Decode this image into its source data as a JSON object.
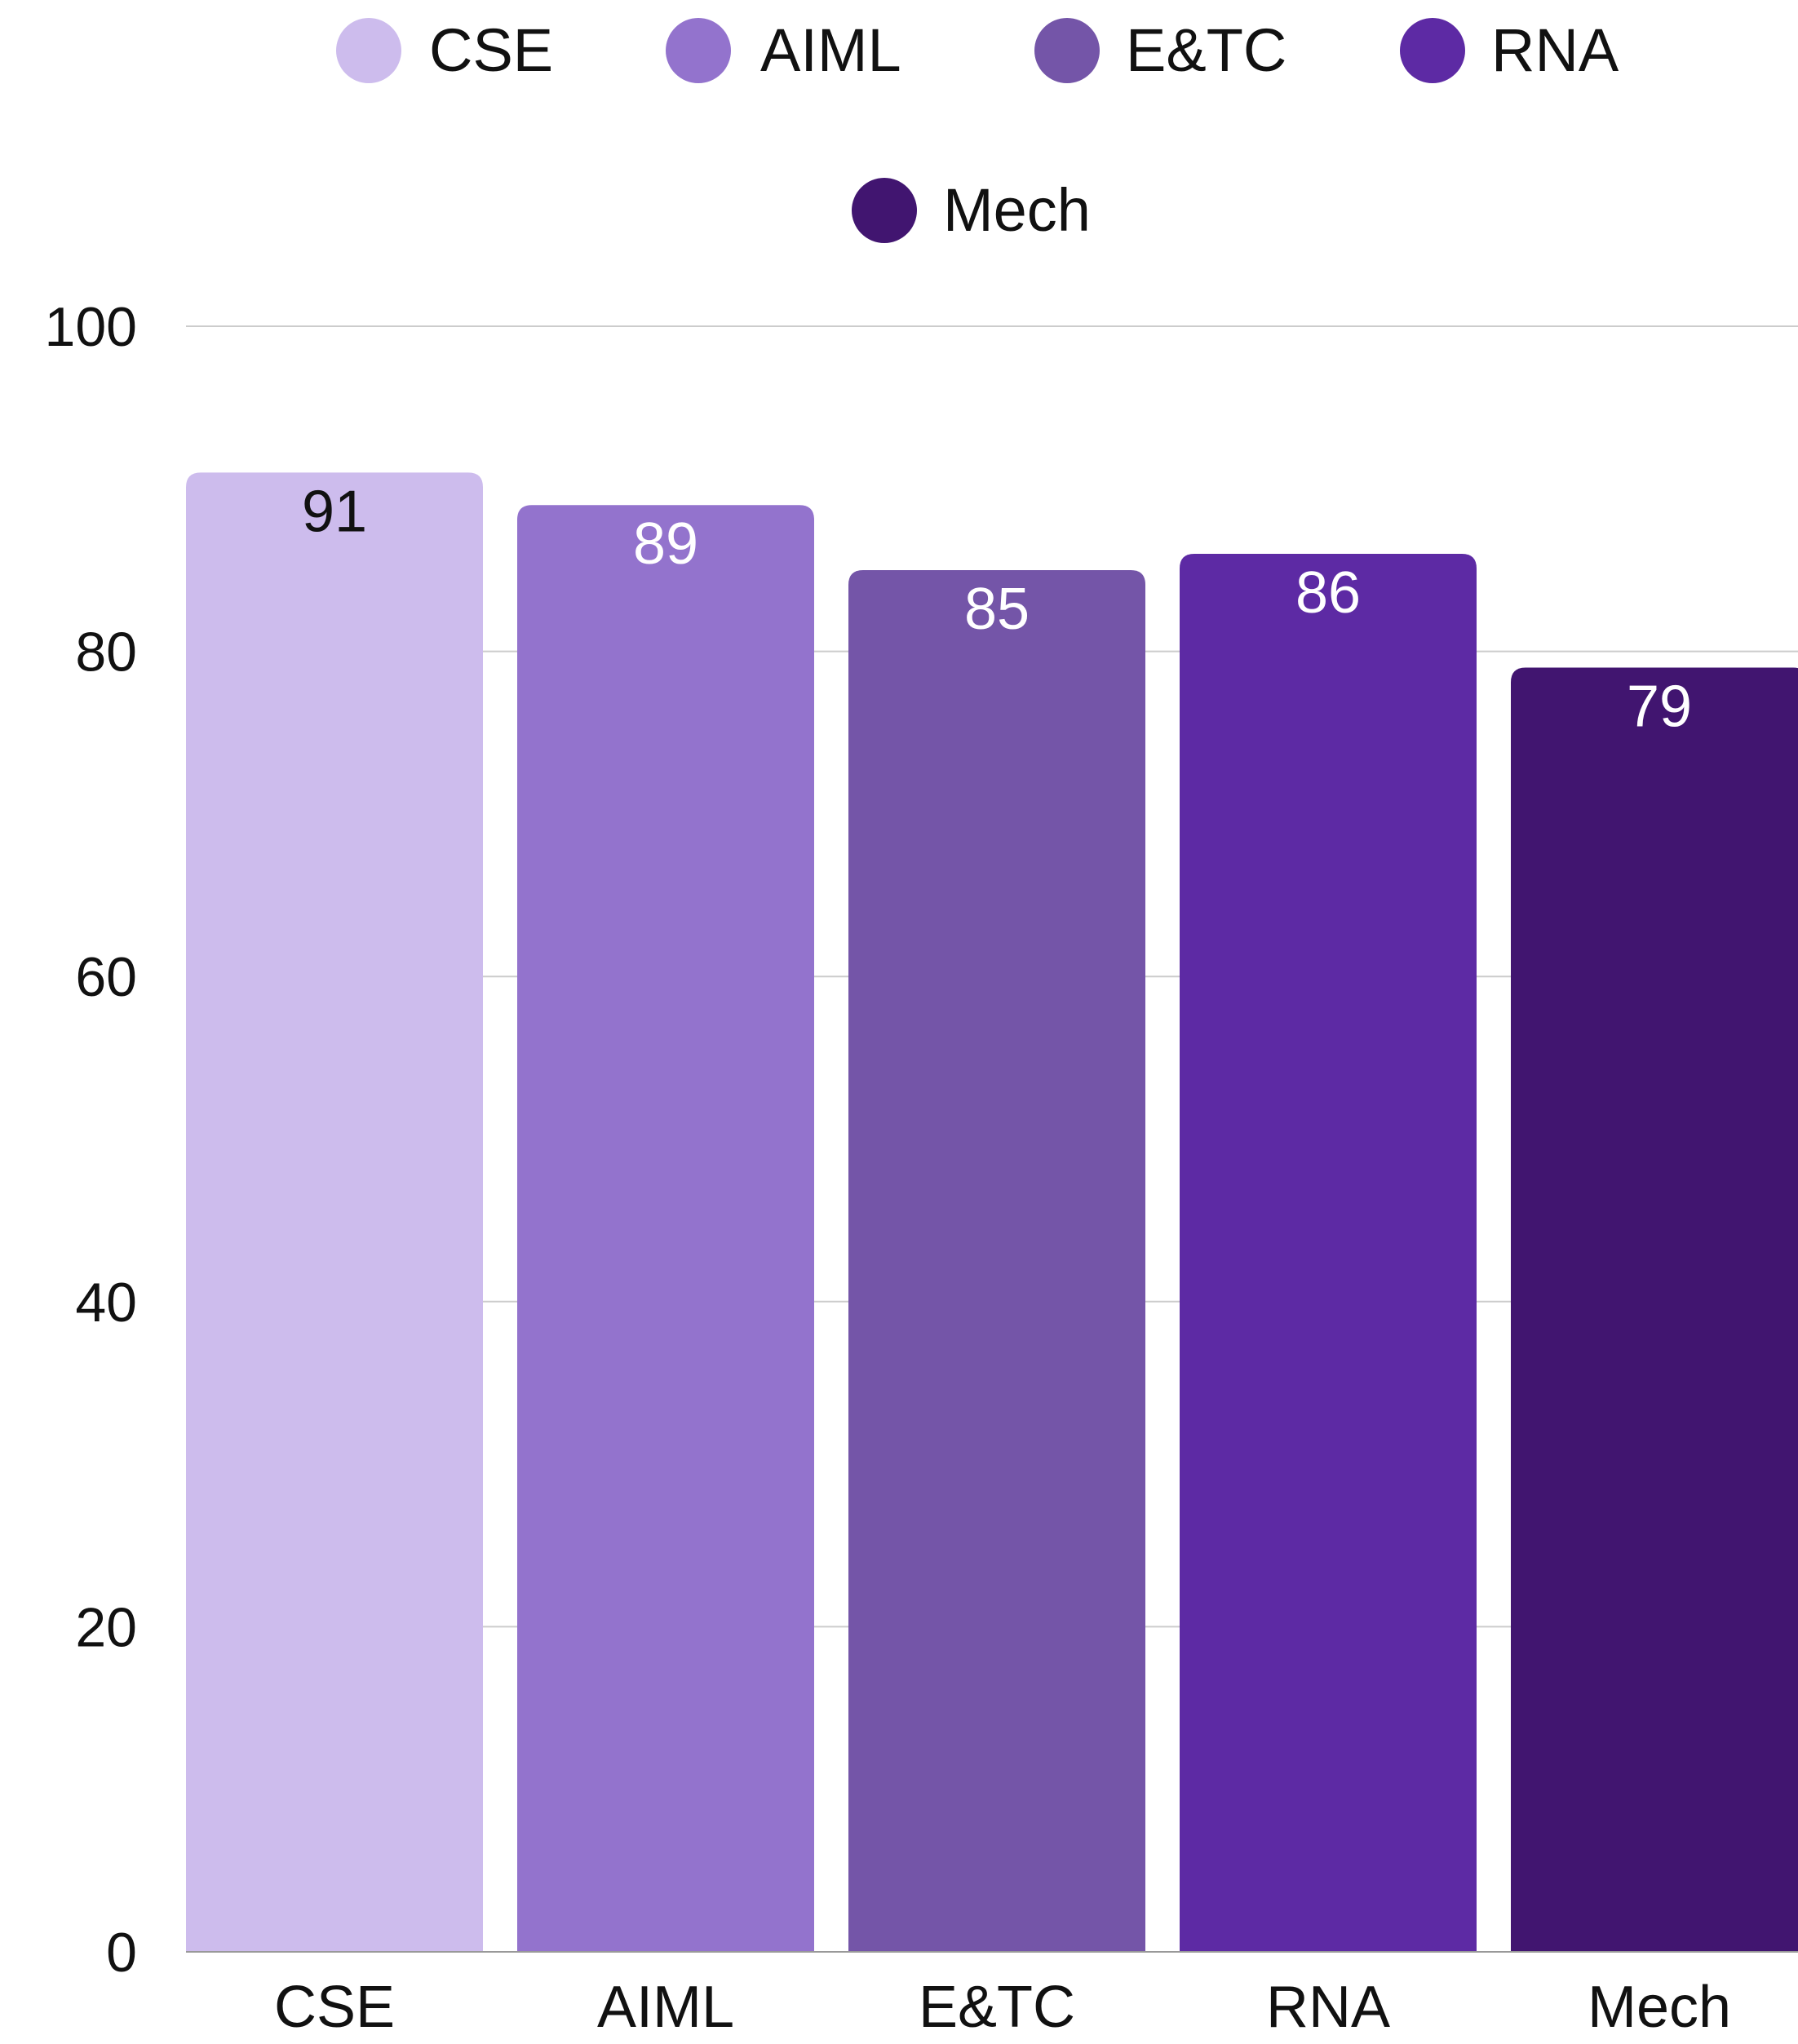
{
  "chart_data": {
    "type": "bar",
    "title": "",
    "xlabel": "",
    "ylabel": "",
    "categories": [
      "CSE",
      "AIML",
      "E&TC",
      "RNA",
      "Mech"
    ],
    "values": [
      91,
      89,
      85,
      86,
      79
    ],
    "colors": [
      "#cdbced",
      "#9373cd",
      "#7455a8",
      "#5d2aa4",
      "#411570"
    ],
    "data_label_colors": [
      "#111111",
      "#ffffff",
      "#ffffff",
      "#ffffff",
      "#ffffff"
    ],
    "ylim": [
      0,
      100
    ],
    "yticks": [
      0,
      20,
      40,
      60,
      80,
      100
    ],
    "grid": true,
    "grid_color": "#cccccc",
    "legend": {
      "position": "top-center",
      "entries": [
        "CSE",
        "AIML",
        "E&TC",
        "RNA",
        "Mech"
      ]
    }
  }
}
